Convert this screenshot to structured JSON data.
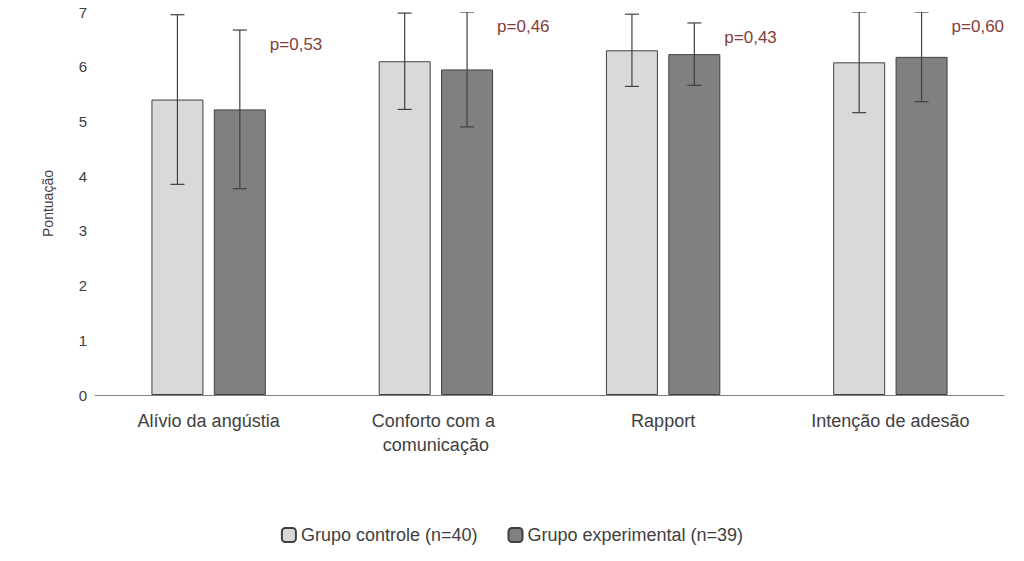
{
  "chart_data": {
    "type": "bar",
    "y_label": "Pontuação",
    "categories": [
      "Alívio da angústia",
      "Conforto com a comunicação",
      "Rapport",
      "Intenção de adesão"
    ],
    "series": [
      {
        "name": "Grupo controle (n=40)",
        "color": "#d9d9d9",
        "values": [
          5.4,
          6.1,
          6.3,
          6.08
        ],
        "errors": [
          1.55,
          0.88,
          0.66,
          0.92
        ]
      },
      {
        "name": "Grupo experimental (n=39)",
        "color": "#808080",
        "values": [
          5.22,
          5.95,
          6.23,
          6.18
        ],
        "errors": [
          1.45,
          1.05,
          0.57,
          0.82
        ]
      }
    ],
    "annotations": [
      "p=0,53",
      "p=0,46",
      "p=0,43",
      "p=0,60"
    ],
    "ylim": [
      0,
      7
    ],
    "yticks": [
      0,
      1,
      2,
      3,
      4,
      5,
      6,
      7
    ],
    "grid": false,
    "legend": "bottom"
  }
}
